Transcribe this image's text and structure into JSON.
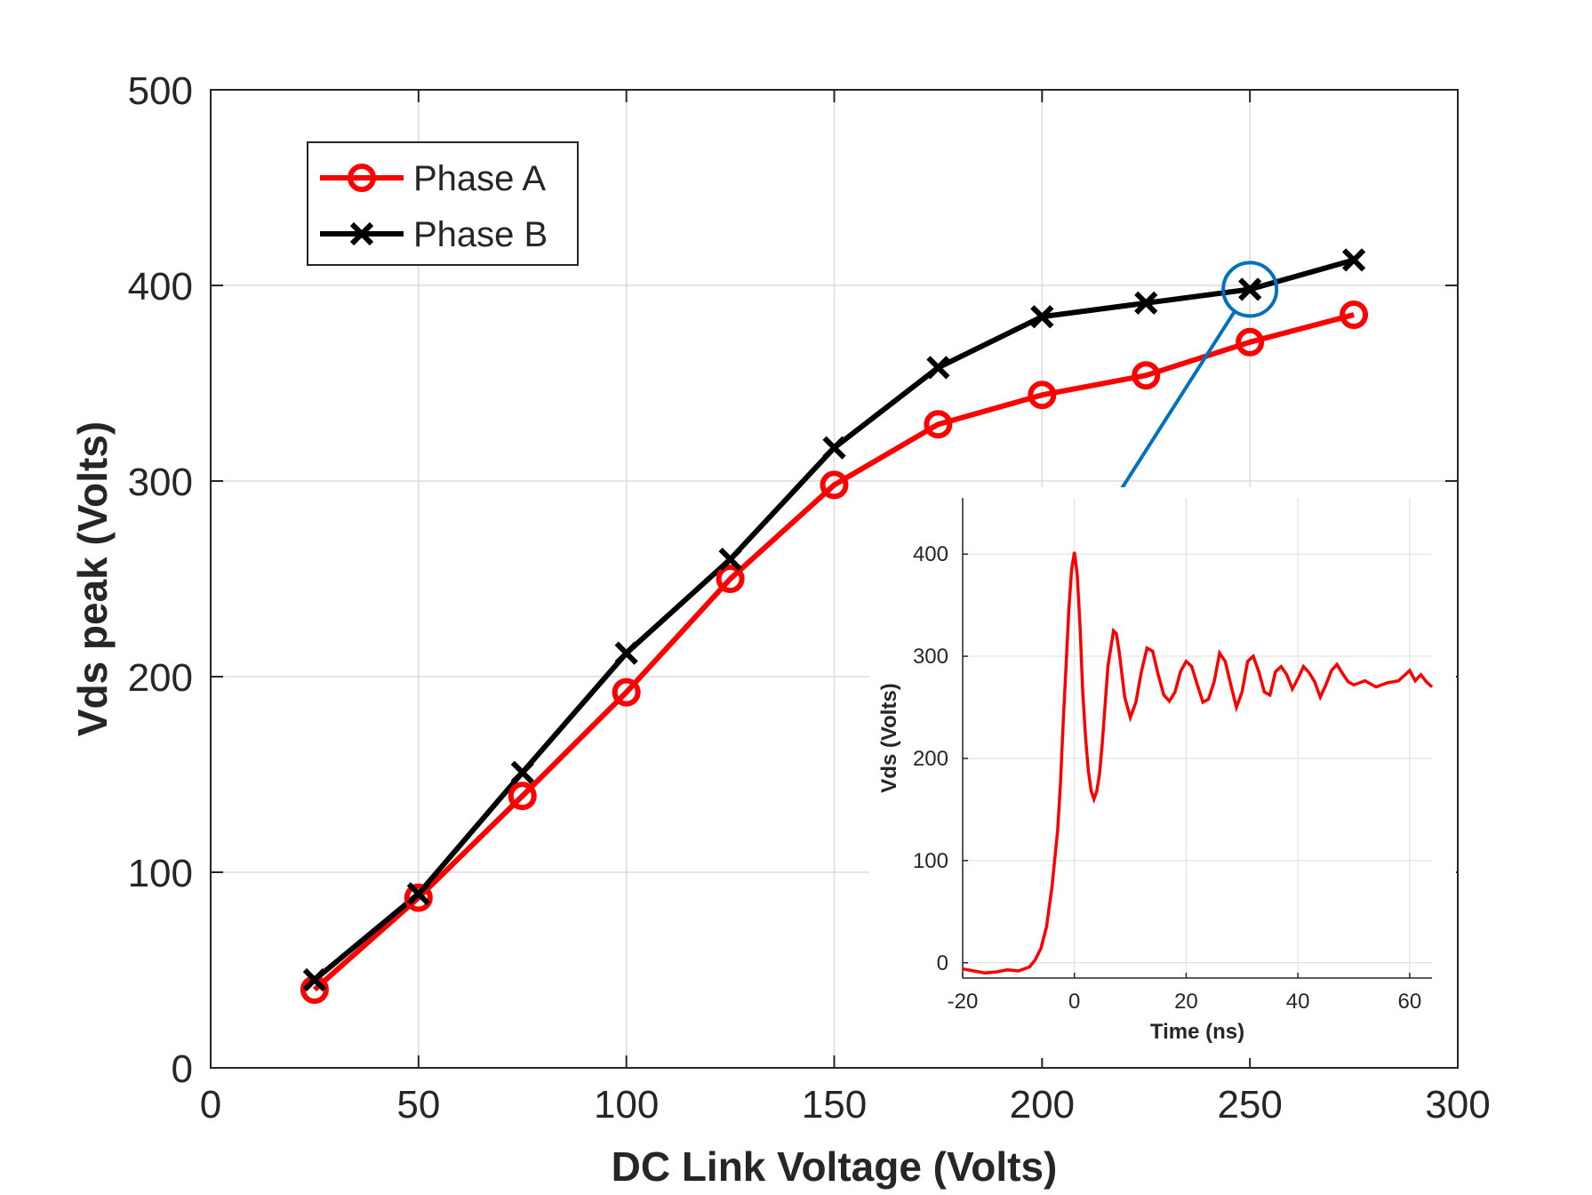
{
  "chart_data": [
    {
      "type": "line",
      "title": "",
      "xlabel": "DC Link Voltage (Volts)",
      "ylabel": "Vds peak (Volts)",
      "xlim": [
        0,
        300
      ],
      "ylim": [
        0,
        500
      ],
      "xticks": [
        0,
        50,
        100,
        150,
        200,
        250,
        300
      ],
      "yticks": [
        0,
        100,
        200,
        300,
        400,
        500
      ],
      "grid": true,
      "legend_position": "top-left",
      "x": [
        25,
        50,
        75,
        100,
        125,
        150,
        175,
        200,
        225,
        250,
        275
      ],
      "series": [
        {
          "name": "Phase A",
          "color": "#ff0000",
          "marker": "circle",
          "values": [
            40,
            87,
            139,
            192,
            250,
            298,
            329,
            344,
            354,
            371,
            385
          ]
        },
        {
          "name": "Phase B",
          "color": "#000000",
          "marker": "x",
          "values": [
            45,
            89,
            151,
            212,
            260,
            317,
            358,
            384,
            391,
            398,
            413
          ]
        }
      ],
      "annotation": {
        "type": "circle-arrow",
        "x": 250,
        "y": 398,
        "target": "inset peak",
        "color": "#0072bd"
      }
    },
    {
      "type": "line",
      "title": "",
      "xlabel": "Time (ns)",
      "ylabel": "Vds (Volts)",
      "xlim": [
        -20,
        64
      ],
      "ylim": [
        -15,
        455
      ],
      "xticks": [
        -20,
        0,
        20,
        40,
        60
      ],
      "yticks": [
        0,
        100,
        200,
        300,
        400
      ],
      "grid": true,
      "series": [
        {
          "name": "",
          "color": "#ff0000",
          "x": [
            -20,
            -18,
            -16,
            -14,
            -12,
            -10,
            -8,
            -7,
            -6,
            -5,
            -4,
            -3,
            -2.5,
            -2,
            -1.5,
            -1,
            -0.5,
            0,
            0.5,
            1,
            1.5,
            2,
            2.5,
            3,
            3.5,
            4,
            4.5,
            5,
            6,
            7,
            7.5,
            8,
            9,
            10,
            11,
            12,
            13,
            14,
            15,
            16,
            17,
            18,
            19,
            20,
            21,
            22,
            23,
            24,
            25,
            26,
            27,
            28,
            29,
            30,
            31,
            32,
            33,
            34,
            35,
            36,
            37,
            38,
            39,
            40,
            41,
            42,
            43,
            44,
            45,
            46,
            47,
            48,
            49,
            50,
            52,
            54,
            56,
            58,
            60,
            61,
            62,
            63,
            64
          ],
          "values": [
            -6,
            -8,
            -10,
            -9,
            -7,
            -8,
            -4,
            3,
            14,
            35,
            75,
            130,
            175,
            235,
            290,
            345,
            385,
            402,
            380,
            330,
            265,
            220,
            188,
            168,
            160,
            168,
            185,
            215,
            290,
            325,
            322,
            305,
            260,
            240,
            255,
            285,
            308,
            305,
            282,
            262,
            256,
            265,
            285,
            295,
            290,
            272,
            255,
            258,
            275,
            303,
            295,
            272,
            250,
            265,
            295,
            300,
            285,
            265,
            262,
            285,
            290,
            282,
            268,
            278,
            290,
            284,
            275,
            260,
            272,
            286,
            292,
            283,
            275,
            272,
            276,
            270,
            274,
            276,
            286,
            276,
            282,
            275,
            270
          ]
        }
      ]
    }
  ]
}
